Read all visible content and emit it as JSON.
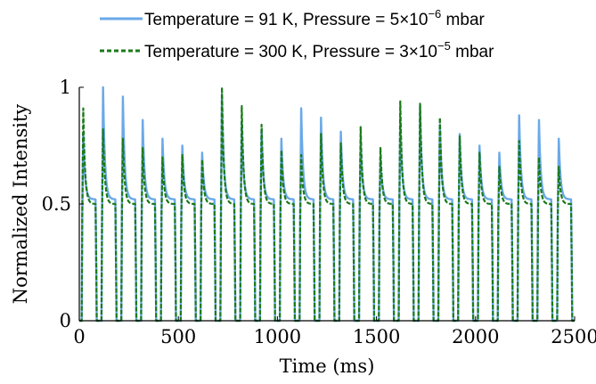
{
  "chart_data": {
    "type": "line",
    "xlabel": "Time (ms)",
    "ylabel": "Normalized Intensity",
    "xlim": [
      0,
      2500
    ],
    "ylim": [
      0,
      1
    ],
    "x_ticks": [
      "0",
      "500",
      "1000",
      "1500",
      "2000",
      "2500"
    ],
    "y_ticks": [
      "0",
      "0.5",
      "1"
    ],
    "grid": false,
    "legend_position": "top",
    "series": [
      {
        "name_parts": [
          "Temperature = 91 K, Pressure = 5×10",
          "−6",
          " mbar"
        ],
        "color": "#6aa9e8",
        "style": "solid",
        "pulse_period_ms": 100,
        "pulse_starts_ms": [
          20,
          120,
          220,
          320,
          420,
          520,
          620,
          720,
          820,
          920,
          1020,
          1120,
          1220,
          1320,
          1420,
          1520,
          1620,
          1720,
          1820,
          1920,
          2020,
          2120,
          2220,
          2320,
          2420
        ],
        "peak_values": [
          0.8,
          1.0,
          0.96,
          0.86,
          0.78,
          0.75,
          0.72,
          0.97,
          0.85,
          0.82,
          0.78,
          0.91,
          0.87,
          0.81,
          0.78,
          0.7,
          0.87,
          0.92,
          0.84,
          0.8,
          0.75,
          0.72,
          0.88,
          0.86,
          0.78
        ],
        "plateau_value": 0.52
      },
      {
        "name_parts": [
          "Temperature = 300 K, Pressure = 3×10",
          "−5",
          " mbar"
        ],
        "color": "#1a7a1a",
        "style": "dashed",
        "pulse_period_ms": 100,
        "pulse_starts_ms": [
          20,
          120,
          220,
          320,
          420,
          520,
          620,
          720,
          820,
          920,
          1020,
          1120,
          1220,
          1320,
          1420,
          1520,
          1620,
          1720,
          1820,
          1920,
          2020,
          2120,
          2220,
          2320,
          2420
        ],
        "peak_values": [
          0.91,
          0.82,
          0.78,
          0.74,
          0.7,
          0.71,
          0.69,
          1.0,
          0.92,
          0.84,
          0.73,
          0.71,
          0.8,
          0.76,
          0.83,
          0.74,
          0.94,
          0.93,
          0.87,
          0.79,
          0.72,
          0.66,
          0.77,
          0.7,
          0.66
        ],
        "plateau_value": 0.5
      }
    ]
  }
}
